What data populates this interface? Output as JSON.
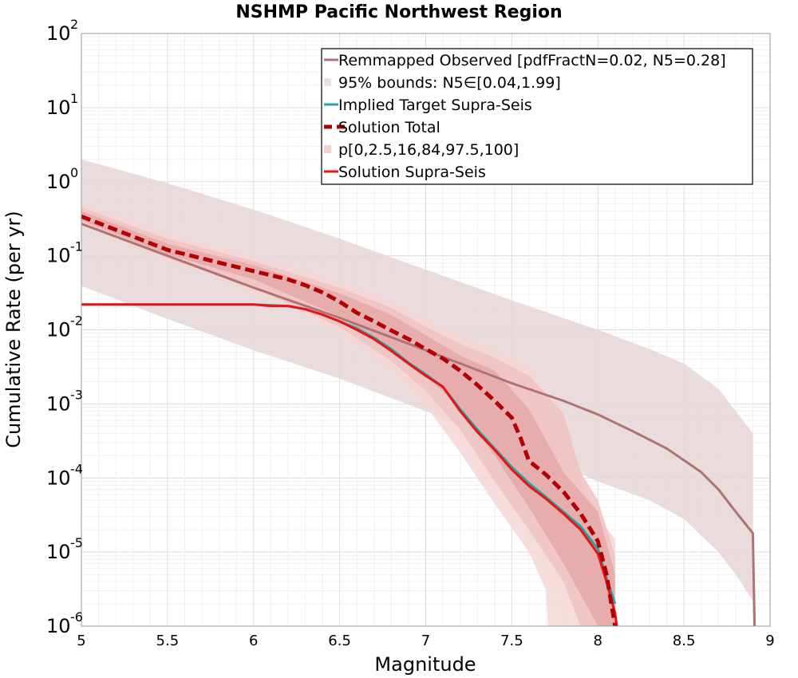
{
  "chart_data": {
    "type": "line",
    "title": "NSHMP Pacific Northwest Region",
    "xlabel": "Magnitude",
    "ylabel": "Cumulative Rate (per yr)",
    "xlim": [
      5,
      9
    ],
    "ylim": [
      1e-06,
      100
    ],
    "yscale": "log",
    "grid": true,
    "legend_position": "top-right",
    "x_ticks": [
      "5",
      "5.5",
      "6",
      "6.5",
      "7",
      "7.5",
      "8",
      "8.5",
      "9"
    ],
    "y_ticks": [
      {
        "base": "10",
        "exp": "-6"
      },
      {
        "base": "10",
        "exp": "-5"
      },
      {
        "base": "10",
        "exp": "-4"
      },
      {
        "base": "10",
        "exp": "-3"
      },
      {
        "base": "10",
        "exp": "-2"
      },
      {
        "base": "10",
        "exp": "-1"
      },
      {
        "base": "10",
        "exp": "0"
      },
      {
        "base": "10",
        "exp": "1"
      },
      {
        "base": "10",
        "exp": "2"
      }
    ],
    "legend": [
      {
        "label": "Remmapped Observed [pdfFractN=0.02, N5=0.28]",
        "style": "line",
        "color": "#b07373"
      },
      {
        "label": "95% bounds: N5∈[0.04,1.99]",
        "style": "band",
        "color": "#eadfe0"
      },
      {
        "label": "Implied Target Supra-Seis",
        "style": "line",
        "color": "#1aa8a8"
      },
      {
        "label": "Solution Total",
        "style": "dashed",
        "color": "#b30000"
      },
      {
        "label": "p[0,2.5,16,84,97.5,100]",
        "style": "band",
        "color": "#f2d0d0"
      },
      {
        "label": "Solution Supra-Seis",
        "style": "line",
        "color": "#ee1111"
      }
    ],
    "observed": {
      "name": "Remmapped Observed [pdfFractN=0.02, N5=0.28]",
      "color": "#b07373",
      "x": [
        5.0,
        5.5,
        6.0,
        6.5,
        7.0,
        7.5,
        7.8,
        8.0,
        8.2,
        8.4,
        8.6,
        8.7,
        8.8,
        8.9,
        8.91
      ],
      "y": [
        0.27,
        0.1,
        0.037,
        0.0145,
        0.0053,
        0.0019,
        0.0011,
        0.00072,
        0.00043,
        0.00025,
        0.00012,
        7e-05,
        3.5e-05,
        1.8e-05,
        1e-06
      ]
    },
    "observed_bounds": {
      "name": "95% bounds: N5∈[0.04,1.99]",
      "color": "#e6d5d7",
      "x": [
        5.0,
        5.5,
        6.0,
        6.5,
        7.0,
        7.5,
        8.0,
        8.3,
        8.5,
        8.7,
        8.8,
        8.9
      ],
      "upper": [
        2.0,
        0.95,
        0.42,
        0.17,
        0.065,
        0.025,
        0.01,
        0.0055,
        0.0035,
        0.0016,
        0.0008,
        0.0004
      ],
      "lower": [
        0.039,
        0.014,
        0.0053,
        0.0022,
        0.0008,
        0.00028,
        9e-05,
        5e-05,
        2.8e-05,
        1e-05,
        5e-06,
        2.2e-06
      ]
    },
    "target_supra_seis": {
      "name": "Implied Target Supra-Seis",
      "color": "#1aa8a8",
      "x": [
        5.0,
        6.0,
        6.2,
        6.3,
        6.4,
        6.5,
        6.6,
        6.7,
        6.8,
        6.9,
        7.0,
        7.1,
        7.2,
        7.3,
        7.4,
        7.5,
        7.6,
        7.7,
        7.8,
        7.9,
        8.0,
        8.05,
        8.1
      ],
      "y": [
        0.022,
        0.022,
        0.021,
        0.019,
        0.016,
        0.013,
        0.0105,
        0.0078,
        0.0055,
        0.0036,
        0.0025,
        0.0017,
        0.00085,
        0.00045,
        0.00025,
        0.00014,
        8.5e-05,
        5.5e-05,
        3.5e-05,
        2.2e-05,
        1.1e-05,
        4.5e-06,
        2e-06
      ]
    },
    "solution_total": {
      "name": "Solution Total",
      "color": "#b30000",
      "x": [
        5.0,
        5.5,
        6.0,
        6.2,
        6.3,
        6.4,
        6.5,
        6.6,
        6.7,
        6.8,
        6.9,
        7.0,
        7.1,
        7.2,
        7.3,
        7.4,
        7.5,
        7.55,
        7.6,
        7.7,
        7.8,
        7.9,
        8.0,
        8.05,
        8.1
      ],
      "y": [
        0.34,
        0.12,
        0.062,
        0.048,
        0.04,
        0.032,
        0.024,
        0.017,
        0.013,
        0.0098,
        0.0075,
        0.0055,
        0.0041,
        0.0028,
        0.0018,
        0.0011,
        0.00065,
        0.00035,
        0.00017,
        0.00011,
        6.5e-05,
        3.3e-05,
        1.4e-05,
        5e-06,
        1e-06
      ]
    },
    "solution_supra_seis": {
      "name": "Solution Supra-Seis",
      "color": "#ee1111",
      "x": [
        5.0,
        6.0,
        6.1,
        6.2,
        6.3,
        6.4,
        6.5,
        6.6,
        6.7,
        6.8,
        6.9,
        7.0,
        7.1,
        7.2,
        7.3,
        7.4,
        7.5,
        7.6,
        7.7,
        7.8,
        7.9,
        8.0,
        8.05,
        8.1,
        8.11
      ],
      "y": [
        0.022,
        0.022,
        0.021,
        0.021,
        0.019,
        0.016,
        0.013,
        0.01,
        0.0075,
        0.0052,
        0.0035,
        0.0024,
        0.0017,
        0.0008,
        0.00042,
        0.00024,
        0.00013,
        7.8e-05,
        5.2e-05,
        3.3e-05,
        2e-05,
        9.5e-06,
        4e-06,
        1.5e-06,
        1e-06
      ]
    },
    "solution_percentile_bands": [
      {
        "name": "p[0,2.5,16,84,97.5,100] 0-100",
        "color": "#f4d6d6",
        "x": [
          5.0,
          5.5,
          6.0,
          6.5,
          6.8,
          7.0,
          7.2,
          7.4,
          7.6,
          7.7,
          7.71,
          8.0,
          8.1
        ],
        "upper": [
          0.52,
          0.2,
          0.1,
          0.045,
          0.025,
          0.014,
          0.0085,
          0.0055,
          0.0032,
          0.0014,
          0.00075,
          3e-05,
          1.5e-05
        ],
        "lower": [
          0.25,
          0.085,
          0.031,
          0.009,
          0.0028,
          0.00095,
          0.00022,
          4.5e-05,
          1e-05,
          3e-06,
          1e-06,
          1e-06,
          1e-06
        ]
      },
      {
        "name": "p[0,2.5,16,84,97.5,100] 2.5-97.5",
        "color": "#eec2c2",
        "x": [
          5.0,
          5.5,
          6.0,
          6.5,
          6.8,
          7.0,
          7.2,
          7.4,
          7.6,
          7.8,
          7.9,
          8.0,
          8.1
        ],
        "upper": [
          0.45,
          0.17,
          0.085,
          0.037,
          0.02,
          0.011,
          0.0065,
          0.0042,
          0.0024,
          0.00075,
          0.00012,
          5e-05,
          9e-06
        ],
        "lower": [
          0.27,
          0.093,
          0.037,
          0.011,
          0.0038,
          0.0015,
          0.00045,
          9e-05,
          2e-05,
          4e-06,
          1e-06,
          1e-06,
          1e-06
        ]
      },
      {
        "name": "p[0,2.5,16,84,97.5,100] 16-84",
        "color": "#e5a8a8",
        "x": [
          5.0,
          5.5,
          6.0,
          6.5,
          6.8,
          7.0,
          7.2,
          7.4,
          7.6,
          7.8,
          8.0,
          8.1
        ],
        "upper": [
          0.4,
          0.145,
          0.075,
          0.031,
          0.016,
          0.0085,
          0.0045,
          0.0028,
          0.00085,
          0.00012,
          3.5e-05,
          5e-06
        ],
        "lower": [
          0.3,
          0.105,
          0.048,
          0.015,
          0.0055,
          0.0024,
          0.0009,
          0.0002,
          4e-05,
          7e-06,
          1e-06,
          1e-06
        ]
      }
    ]
  }
}
